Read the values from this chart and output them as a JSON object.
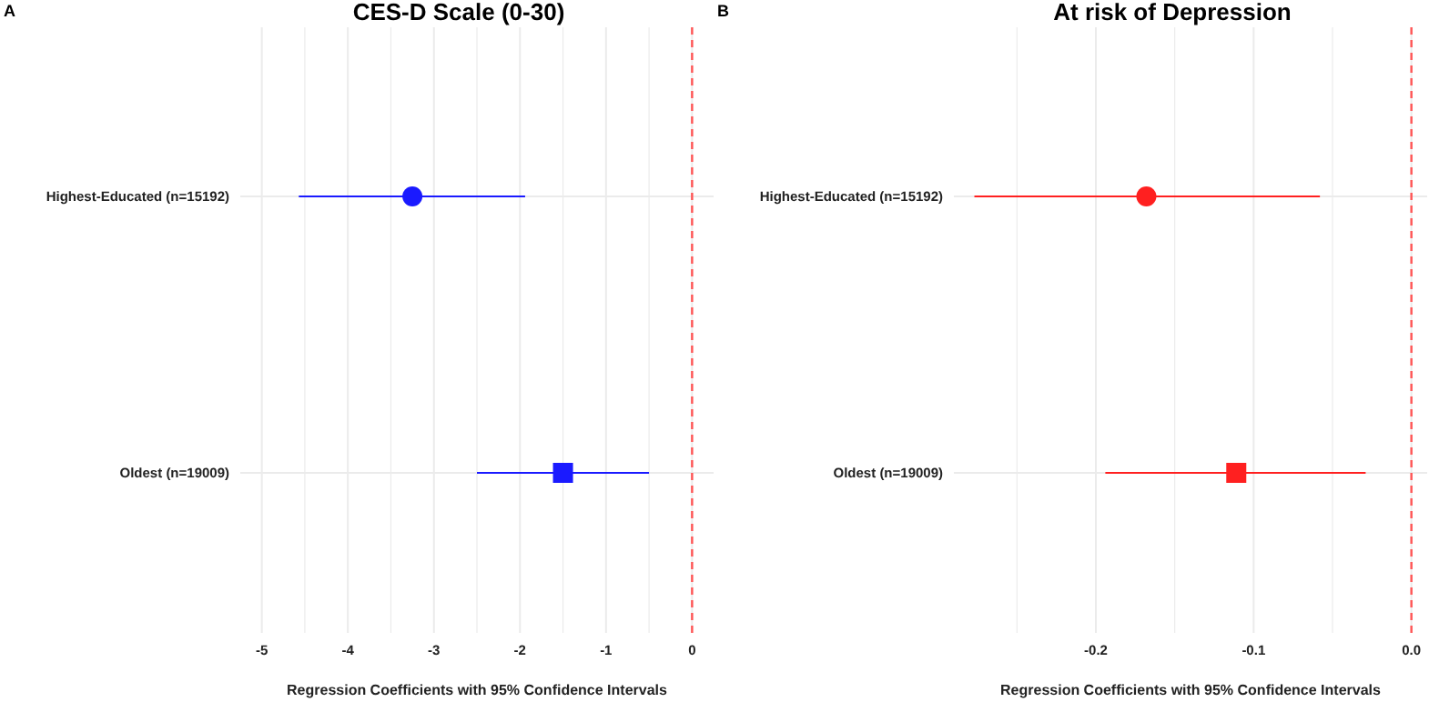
{
  "chart_data": [
    {
      "type": "scatter",
      "orientation": "horizontal",
      "title": "CES-D Scale (0-30)",
      "xlabel": "Regression Coefficients with 95% Confidence Intervals",
      "annotations": [
        "A"
      ],
      "categories": [
        "Highest-Educated (n=15192)",
        "Oldest (n=19009)"
      ],
      "series": [
        {
          "color": "#1a1aff",
          "marker": "circle",
          "values": [
            -3.25,
            null
          ],
          "errors": [
            [
              -4.57,
              -1.94
            ],
            null
          ]
        },
        {
          "color": "#1a1aff",
          "marker": "square",
          "values": [
            null,
            -1.5
          ],
          "errors": [
            null,
            [
              -2.5,
              -0.5
            ]
          ]
        }
      ],
      "xlim": [
        -5.25,
        0.25
      ],
      "xticks": [
        -5,
        {
          "value": -4.5,
          "label": null
        },
        -4,
        {
          "value": -3.5,
          "label": null
        },
        -3,
        {
          "value": -2.5,
          "label": null
        },
        -2,
        {
          "value": -1.5,
          "label": null
        },
        -1,
        {
          "value": -0.5,
          "label": null
        },
        0
      ],
      "ref_lines": [
        {
          "axis": "x",
          "value": 0,
          "color": "#ff5555",
          "line_style": "dashed"
        }
      ],
      "grid": true
    },
    {
      "type": "scatter",
      "orientation": "horizontal",
      "title": "At risk of Depression",
      "xlabel": "Regression Coefficients with 95% Confidence Intervals",
      "annotations": [
        "B"
      ],
      "categories": [
        "Highest-Educated (n=15192)",
        "Oldest (n=19009)"
      ],
      "series": [
        {
          "color": "#ff2020",
          "marker": "circle",
          "values": [
            -0.168,
            null
          ],
          "errors": [
            [
              -0.277,
              -0.058
            ],
            null
          ]
        },
        {
          "color": "#ff2020",
          "marker": "square",
          "values": [
            null,
            -0.111
          ],
          "errors": [
            null,
            [
              -0.194,
              -0.029
            ]
          ]
        }
      ],
      "xlim": [
        -0.29,
        0.01
      ],
      "xticks": [
        {
          "value": -0.25,
          "label": null
        },
        -0.2,
        {
          "value": -0.15,
          "label": null
        },
        -0.1,
        {
          "value": -0.05,
          "label": null
        },
        {
          "value": 0,
          "label": "0.0"
        }
      ],
      "ref_lines": [
        {
          "axis": "x",
          "value": 0,
          "color": "#ff5555",
          "line_style": "dashed"
        }
      ],
      "grid": true
    }
  ]
}
